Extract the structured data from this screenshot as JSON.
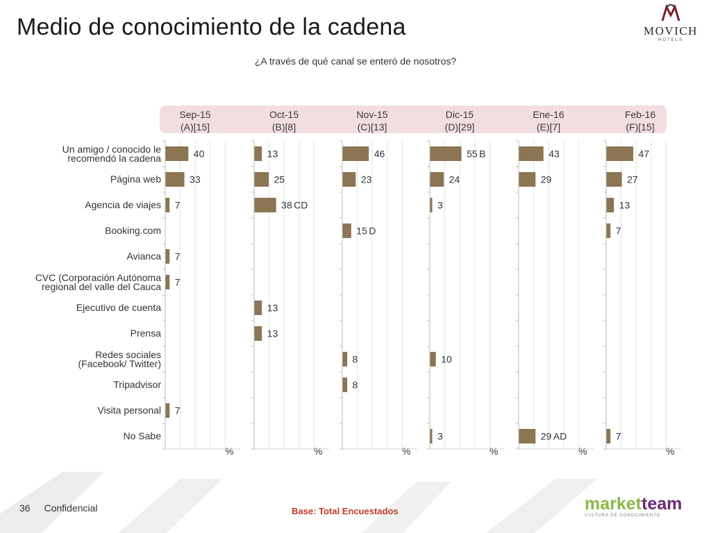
{
  "header": {
    "title": "Medio de conocimiento de la cadena",
    "subtitle": "¿A través de qué canal se enteró de nosotros?"
  },
  "logo": {
    "brand": "MOVICH",
    "sub": "HOTELS"
  },
  "footer": {
    "page_number": "36",
    "confidential": "Confidencial",
    "base_note": "Base: Total Encuestados",
    "partner_logo": {
      "part1": "market",
      "part2": "team",
      "tagline": "CULTURA DE CONOCIMIENTO"
    }
  },
  "chart_data": {
    "type": "bar",
    "orientation": "horizontal",
    "unit_label": "%",
    "bar_color": "#8c7553",
    "categories": [
      "Un amigo / conocido le recomendó la cadena",
      "Página web",
      "Agencia de viajes",
      "Booking.com",
      "Avianca",
      "CVC (Corporación Autónoma regional del valle del Cauca",
      "Ejecutivo de cuenta",
      "Prensa",
      "Redes sociales (Facebook/ Twitter)",
      "Tripadvisor",
      "Visita personal",
      "No Sabe"
    ],
    "category_lines": [
      [
        "Un amigo / conocido le",
        "recomendó la cadena"
      ],
      [
        "Página web"
      ],
      [
        "Agencia de viajes"
      ],
      [
        "Booking.com"
      ],
      [
        "Avianca"
      ],
      [
        "CVC (Corporación Autónoma",
        "regional del valle del Cauca"
      ],
      [
        "Ejecutivo de cuenta"
      ],
      [
        "Prensa"
      ],
      [
        "Redes sociales",
        "(Facebook/ Twitter)"
      ],
      [
        "Tripadvisor"
      ],
      [
        "Visita personal"
      ],
      [
        "No Sabe"
      ]
    ],
    "series": [
      {
        "name": "Sep-15",
        "code": "(A)[15]",
        "values": [
          40,
          33,
          7,
          null,
          7,
          7,
          null,
          null,
          null,
          null,
          7,
          null
        ],
        "marks": [
          "",
          "",
          "",
          "",
          "",
          "",
          "",
          "",
          "",
          "",
          "",
          ""
        ]
      },
      {
        "name": "Oct-15",
        "code": "(B)[8]",
        "values": [
          13,
          25,
          38,
          null,
          null,
          null,
          13,
          13,
          null,
          null,
          null,
          null
        ],
        "marks": [
          "",
          "",
          "CD",
          "",
          "",
          "",
          "",
          "",
          "",
          "",
          "",
          ""
        ]
      },
      {
        "name": "Nov-15",
        "code": "(C)[13]",
        "values": [
          46,
          23,
          null,
          15,
          null,
          null,
          null,
          null,
          8,
          8,
          null,
          null
        ],
        "marks": [
          "",
          "",
          "",
          "D",
          "",
          "",
          "",
          "",
          "",
          "",
          "",
          ""
        ]
      },
      {
        "name": "Dic-15",
        "code": "(D)[29]",
        "values": [
          55,
          24,
          3,
          null,
          null,
          null,
          null,
          null,
          10,
          null,
          null,
          3
        ],
        "marks": [
          "B",
          "",
          "",
          "",
          "",
          "",
          "",
          "",
          "",
          "",
          "",
          ""
        ]
      },
      {
        "name": "Ene-16",
        "code": "(E)[7]",
        "values": [
          43,
          29,
          null,
          null,
          null,
          null,
          null,
          null,
          null,
          null,
          null,
          29
        ],
        "marks": [
          "",
          "",
          "",
          "",
          "",
          "",
          "",
          "",
          "",
          "",
          "",
          "AD"
        ]
      },
      {
        "name": "Feb-16",
        "code": "(F)[15]",
        "values": [
          47,
          27,
          13,
          7,
          null,
          null,
          null,
          null,
          null,
          null,
          null,
          7
        ],
        "marks": [
          "",
          "",
          "",
          "",
          "",
          "",
          "",
          "",
          "",
          "",
          "",
          ""
        ]
      }
    ],
    "xlim": [
      0,
      100
    ],
    "grid": true,
    "legend": "none"
  }
}
